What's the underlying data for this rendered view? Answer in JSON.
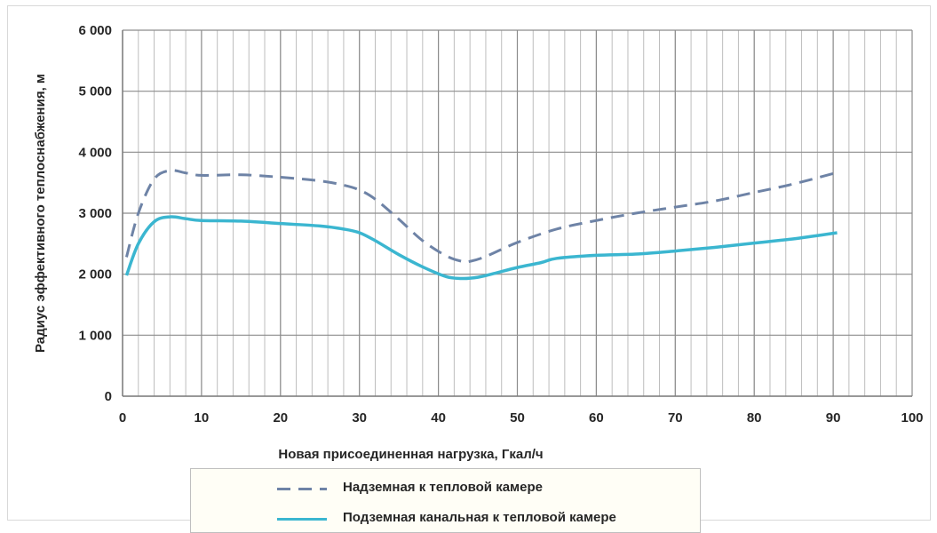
{
  "chart_data": {
    "type": "line",
    "xlabel": "Новая присоединенная нагрузка, Гкал/ч",
    "ylabel": "Радиус эффективного теплоснабжения, м",
    "xlim": [
      0,
      100
    ],
    "ylim": [
      0,
      6000
    ],
    "x_ticks": [
      0,
      10,
      20,
      30,
      40,
      50,
      60,
      70,
      80,
      90,
      100
    ],
    "x_tick_labels": [
      "0",
      "10",
      "20",
      "30",
      "40",
      "50",
      "60",
      "70",
      "80",
      "90",
      "100"
    ],
    "y_ticks": [
      0,
      1000,
      2000,
      3000,
      4000,
      5000,
      6000
    ],
    "y_tick_labels": [
      "0",
      "1 000",
      "2 000",
      "3 000",
      "4 000",
      "5 000",
      "6 000"
    ],
    "x_minor_step": 2,
    "grid": true,
    "legend_position": "bottom",
    "series": [
      {
        "name": "Надземная к тепловой камере",
        "color": "#6e83a6",
        "dash": "dashed",
        "x": [
          0.5,
          2,
          4,
          6,
          8,
          10,
          15,
          20,
          25,
          28,
          30,
          32,
          35,
          38,
          41,
          43,
          44,
          46,
          50,
          55,
          60,
          65,
          70,
          75,
          80,
          85,
          90
        ],
        "y": [
          2280,
          3000,
          3560,
          3700,
          3660,
          3620,
          3630,
          3590,
          3530,
          3460,
          3380,
          3230,
          2900,
          2550,
          2300,
          2210,
          2210,
          2290,
          2520,
          2740,
          2880,
          3000,
          3100,
          3200,
          3340,
          3480,
          3650
        ]
      },
      {
        "name": "Подземная канальная к тепловой камере",
        "color": "#3bb6d0",
        "dash": "solid",
        "x": [
          0.5,
          2,
          4,
          6,
          8,
          10,
          15,
          20,
          25,
          28,
          30,
          32,
          35,
          38,
          41,
          43,
          45,
          47,
          50,
          53,
          55,
          60,
          65,
          70,
          75,
          80,
          85,
          90.5
        ],
        "y": [
          1980,
          2500,
          2860,
          2940,
          2910,
          2880,
          2870,
          2830,
          2790,
          2740,
          2680,
          2550,
          2320,
          2120,
          1960,
          1930,
          1950,
          2010,
          2110,
          2190,
          2260,
          2310,
          2330,
          2380,
          2440,
          2510,
          2580,
          2680
        ]
      }
    ]
  }
}
